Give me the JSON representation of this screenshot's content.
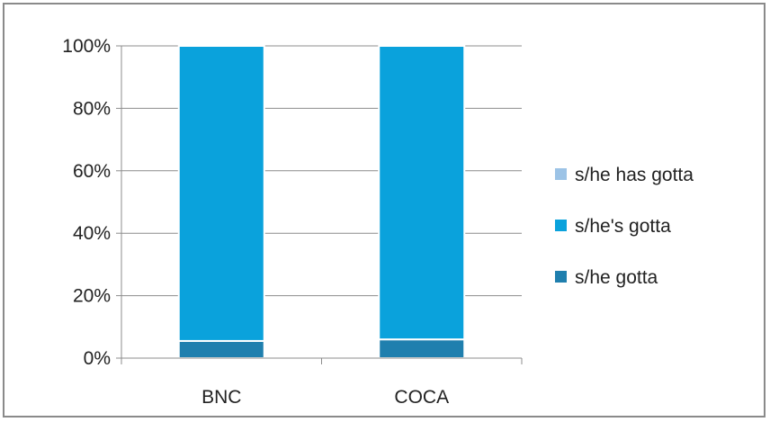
{
  "chart_data": {
    "type": "bar",
    "stacked": true,
    "percent_stacked": true,
    "categories": [
      "BNC",
      "COCA"
    ],
    "series": [
      {
        "name": "s/he gotta",
        "values": [
          5.5,
          6
        ],
        "color": "#1f7fae"
      },
      {
        "name": "s/he's gotta",
        "values": [
          94.5,
          94
        ],
        "color": "#0aa2dc"
      },
      {
        "name": "s/he has gotta",
        "values": [
          0,
          0
        ],
        "color": "#9cc3e6"
      }
    ],
    "title": "",
    "xlabel": "",
    "ylabel": "",
    "ylim": [
      0,
      100
    ],
    "yticks": [
      "0%",
      "20%",
      "40%",
      "60%",
      "80%",
      "100%"
    ],
    "grid": true,
    "legend": "right"
  }
}
